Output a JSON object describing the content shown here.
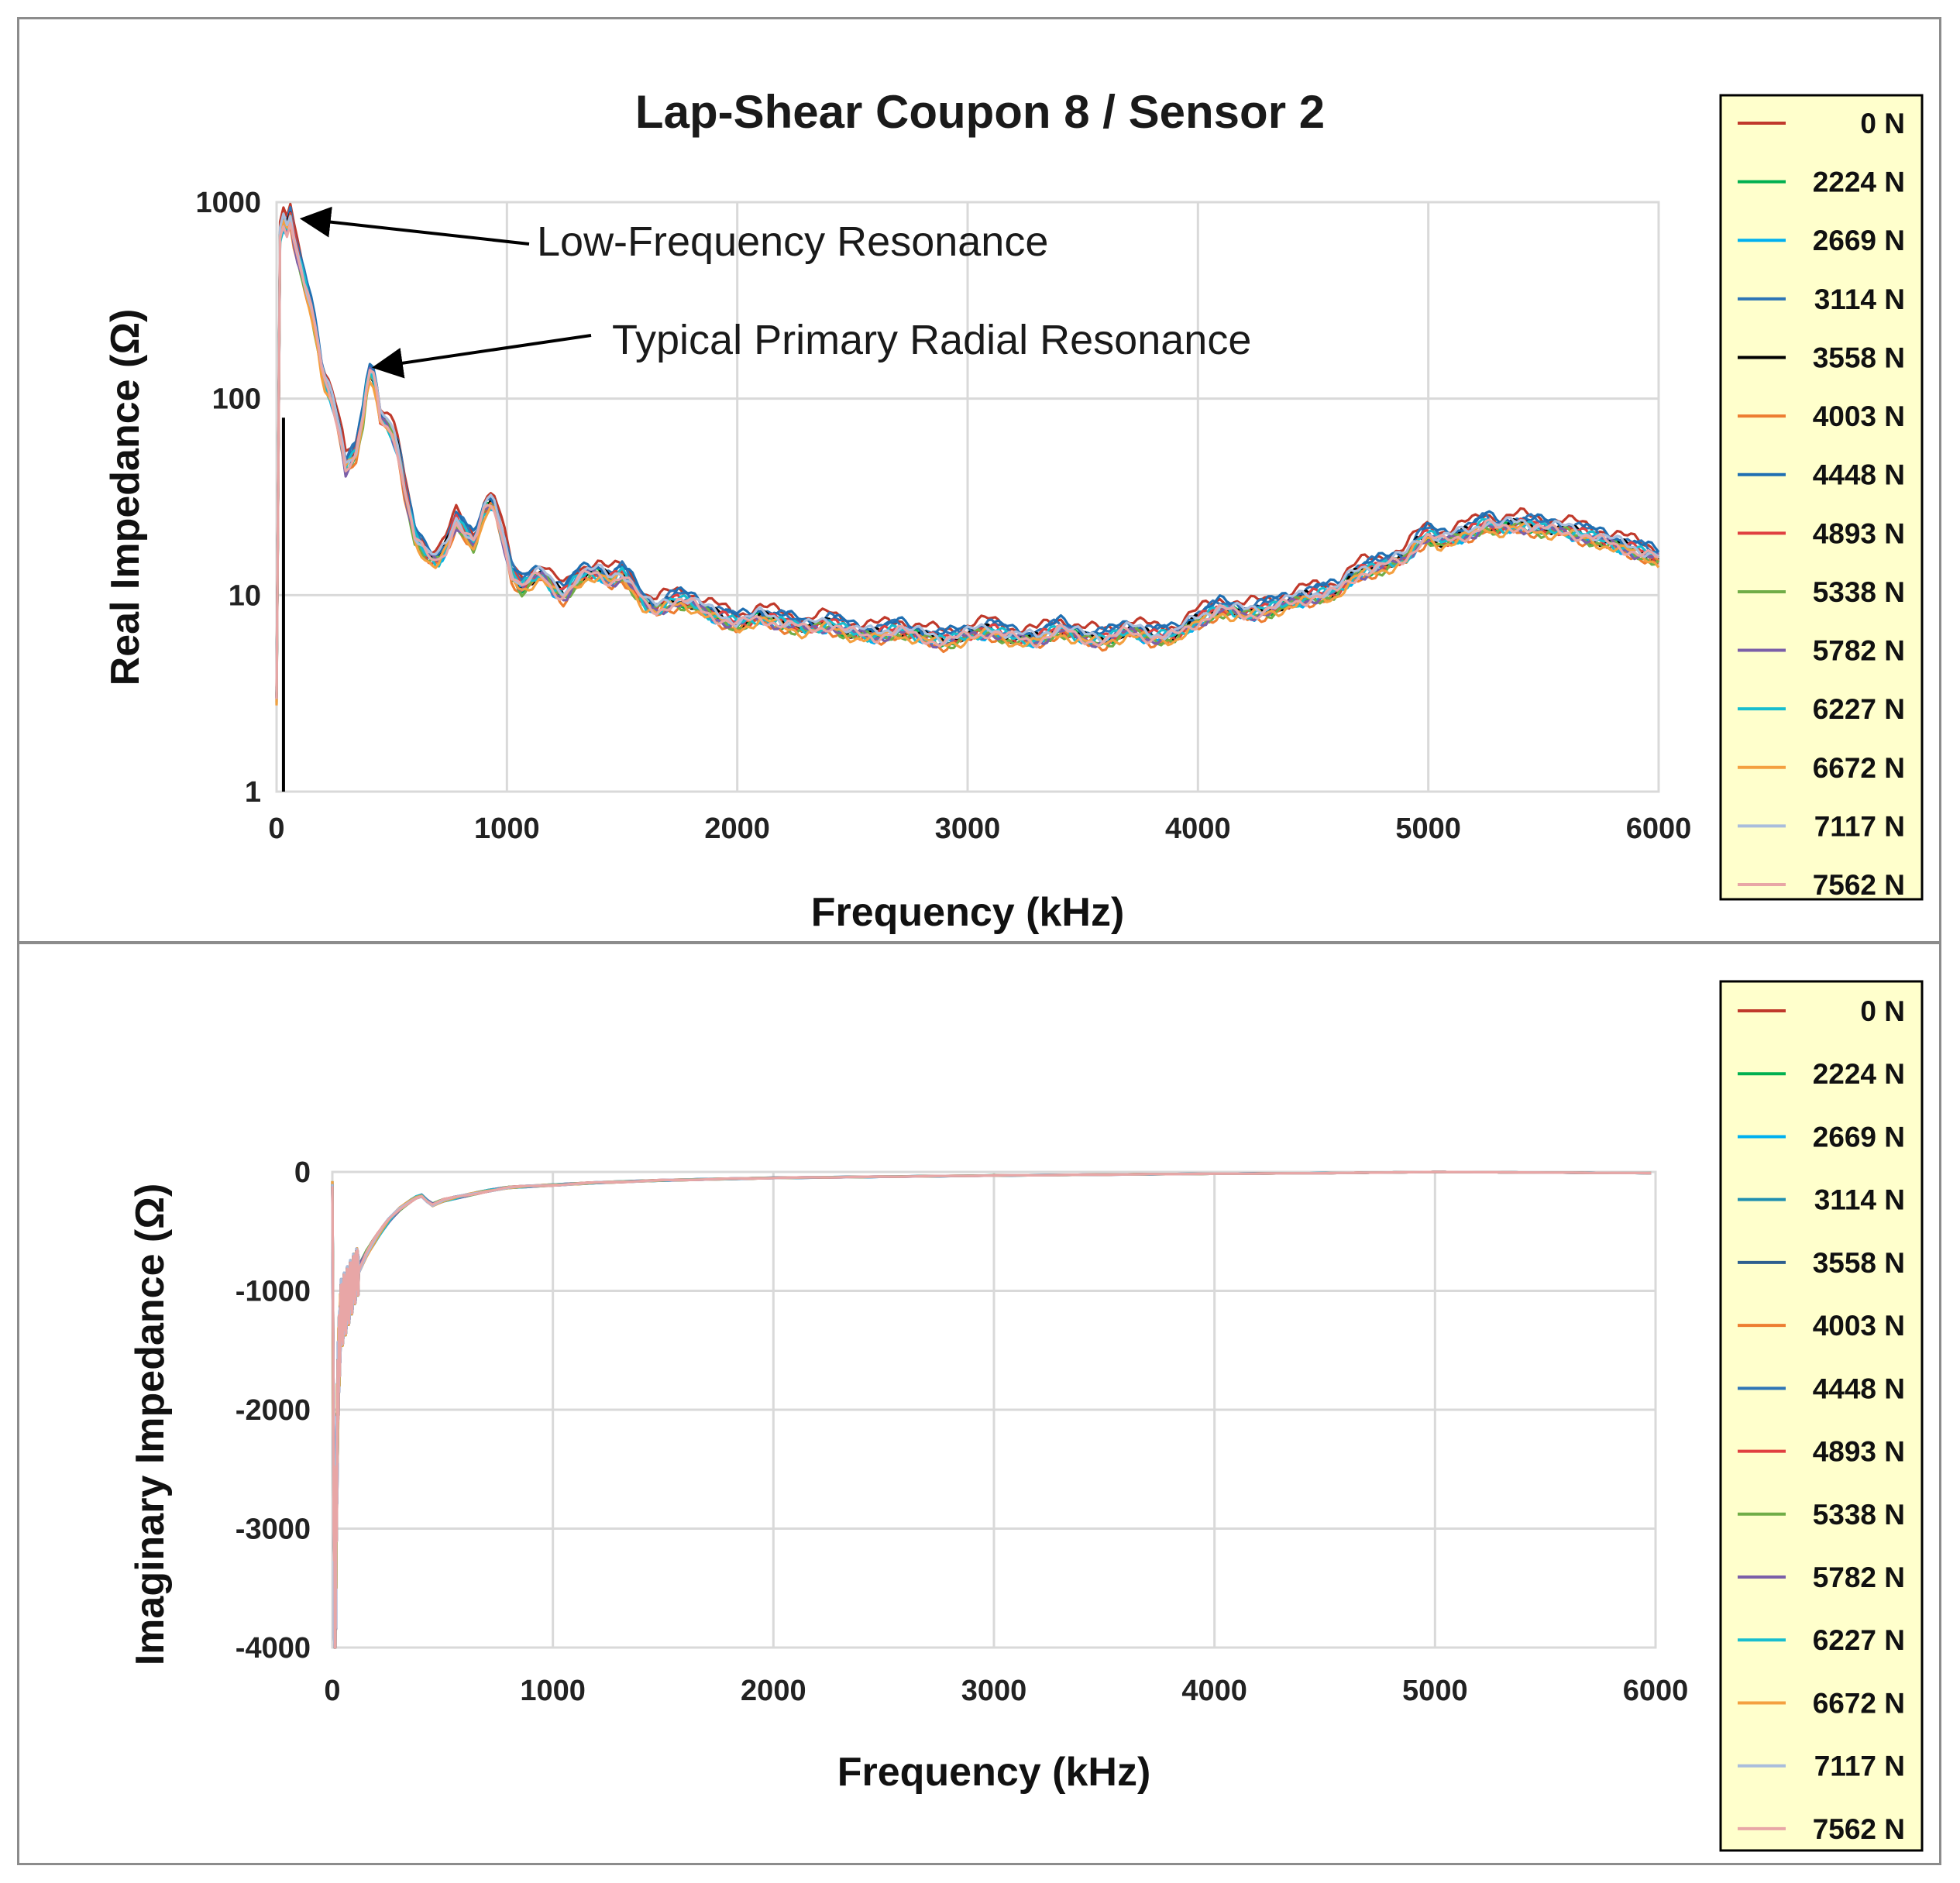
{
  "chart_data": [
    {
      "type": "line",
      "title": "Lap-Shear Coupon 8 / Sensor 2",
      "xlabel": "Frequency (kHz)",
      "ylabel": "Real Impedance (Ω)",
      "xlim": [
        0,
        6000
      ],
      "ylim": [
        1,
        1000
      ],
      "yscale": "log",
      "grid": true,
      "legend_position": "right",
      "x_ticks": [
        "0",
        "1000",
        "2000",
        "3000",
        "4000",
        "5000",
        "6000"
      ],
      "y_ticks": [
        "1",
        "10",
        "100",
        "1000"
      ],
      "annotations": [
        {
          "text": "Low-Frequency Resonance",
          "x": 80,
          "y": 900
        },
        {
          "text": "Typical Primary Radial Resonance",
          "x": 400,
          "y": 150
        }
      ],
      "series": [
        {
          "name": "0 N",
          "color": "#c0392b",
          "offset": 1.12
        },
        {
          "name": "2224 N",
          "color": "#00b050",
          "offset": 0.98
        },
        {
          "name": "2669 N",
          "color": "#00b0f0",
          "offset": 0.97
        },
        {
          "name": "3114 N",
          "color": "#2e75b6",
          "offset": 1.06
        },
        {
          "name": "3558 N",
          "color": "#000000",
          "offset": 1.0
        },
        {
          "name": "4003 N",
          "color": "#ed7d31",
          "offset": 0.94
        },
        {
          "name": "4448 N",
          "color": "#1f6fb2",
          "offset": 1.08
        },
        {
          "name": "4893 N",
          "color": "#e04040",
          "offset": 1.0
        },
        {
          "name": "5338 N",
          "color": "#70ad47",
          "offset": 0.96
        },
        {
          "name": "5782 N",
          "color": "#7b5fa8",
          "offset": 0.97
        },
        {
          "name": "6227 N",
          "color": "#17becf",
          "offset": 0.99
        },
        {
          "name": "6672 N",
          "color": "#f4a040",
          "offset": 0.95
        },
        {
          "name": "7117 N",
          "color": "#a9bddc",
          "offset": 1.03
        },
        {
          "name": "7562 N",
          "color": "#e8a6a6",
          "offset": 0.98
        }
      ],
      "base_curve": {
        "x": [
          0,
          20,
          40,
          60,
          80,
          120,
          160,
          200,
          250,
          300,
          350,
          380,
          400,
          420,
          450,
          480,
          520,
          560,
          600,
          650,
          700,
          740,
          780,
          820,
          860,
          900,
          940,
          980,
          1020,
          1060,
          1100,
          1150,
          1200,
          1250,
          1300,
          1350,
          1400,
          1450,
          1500,
          1550,
          1600,
          1650,
          1700,
          1750,
          1800,
          1850,
          1900,
          1950,
          2000,
          2100,
          2200,
          2300,
          2400,
          2500,
          2600,
          2700,
          2800,
          2900,
          3000,
          3100,
          3200,
          3300,
          3400,
          3500,
          3600,
          3700,
          3800,
          3900,
          4000,
          4100,
          4200,
          4300,
          4400,
          4500,
          4600,
          4700,
          4800,
          4900,
          4950,
          5000,
          5050,
          5100,
          5200,
          5250,
          5300,
          5400,
          5500,
          5600,
          5700,
          5800,
          5900,
          6000
        ],
        "y": [
          3,
          900,
          700,
          850,
          600,
          400,
          250,
          130,
          90,
          45,
          55,
          85,
          140,
          130,
          80,
          75,
          60,
          32,
          20,
          16,
          15,
          18,
          24,
          21,
          18,
          27,
          30,
          20,
          13,
          11,
          12,
          13,
          11,
          10,
          12,
          13,
          13,
          12,
          13,
          11,
          9,
          8.5,
          9.2,
          9.5,
          9.2,
          8.5,
          8,
          7.6,
          7.2,
          7.8,
          7.3,
          6.8,
          7.2,
          6.5,
          6.3,
          6.7,
          6.2,
          5.9,
          6.3,
          6.7,
          6.1,
          6.0,
          6.8,
          6.1,
          6.0,
          6.7,
          6.2,
          6.3,
          7.5,
          8.6,
          8.1,
          8.5,
          9.3,
          10.0,
          10.5,
          13.2,
          14.2,
          15.5,
          18.5,
          20.5,
          19.0,
          19.5,
          21.5,
          23.5,
          22.0,
          23.0,
          22.0,
          21.5,
          20.0,
          18.5,
          17.0,
          15.5
        ]
      }
    },
    {
      "type": "line",
      "title": "",
      "xlabel": "Frequency (kHz)",
      "ylabel": "Imaginary  Impedance (Ω)",
      "xlim": [
        0,
        6000
      ],
      "ylim": [
        -4000,
        0
      ],
      "grid": true,
      "legend_position": "right",
      "x_ticks": [
        "0",
        "1000",
        "2000",
        "3000",
        "4000",
        "5000",
        "6000"
      ],
      "y_ticks": [
        "0",
        "-1000",
        "-2000",
        "-3000",
        "-4000"
      ],
      "series": [
        {
          "name": "0 N",
          "color": "#c0392b"
        },
        {
          "name": "2224 N",
          "color": "#00b050"
        },
        {
          "name": "2669 N",
          "color": "#00b0f0"
        },
        {
          "name": "3114 N",
          "color": "#1f8fb0"
        },
        {
          "name": "3558 N",
          "color": "#2e5f8e"
        },
        {
          "name": "4003 N",
          "color": "#ed7d31"
        },
        {
          "name": "4448 N",
          "color": "#2e75b6"
        },
        {
          "name": "4893 N",
          "color": "#e04040"
        },
        {
          "name": "5338 N",
          "color": "#70ad47"
        },
        {
          "name": "5782 N",
          "color": "#7b5fa8"
        },
        {
          "name": "6227 N",
          "color": "#17becf"
        },
        {
          "name": "6672 N",
          "color": "#f4a040"
        },
        {
          "name": "7117 N",
          "color": "#a9bddc"
        },
        {
          "name": "7562 N",
          "color": "#e8a6a6"
        }
      ],
      "base_curve": {
        "x": [
          0,
          10,
          20,
          30,
          40,
          60,
          80,
          100,
          150,
          200,
          250,
          300,
          350,
          400,
          450,
          500,
          600,
          700,
          800,
          1000,
          1200,
          1500,
          2000,
          2500,
          3000,
          4000,
          4500,
          5000,
          5500,
          6000
        ],
        "y": [
          -100,
          -4000,
          -2500,
          -1500,
          -1200,
          -1100,
          -1000,
          -900,
          -700,
          -550,
          -420,
          -320,
          -250,
          -190,
          -280,
          -240,
          -200,
          -160,
          -130,
          -110,
          -90,
          -70,
          -50,
          -40,
          -30,
          -15,
          -10,
          0,
          -5,
          -10
        ]
      }
    }
  ]
}
